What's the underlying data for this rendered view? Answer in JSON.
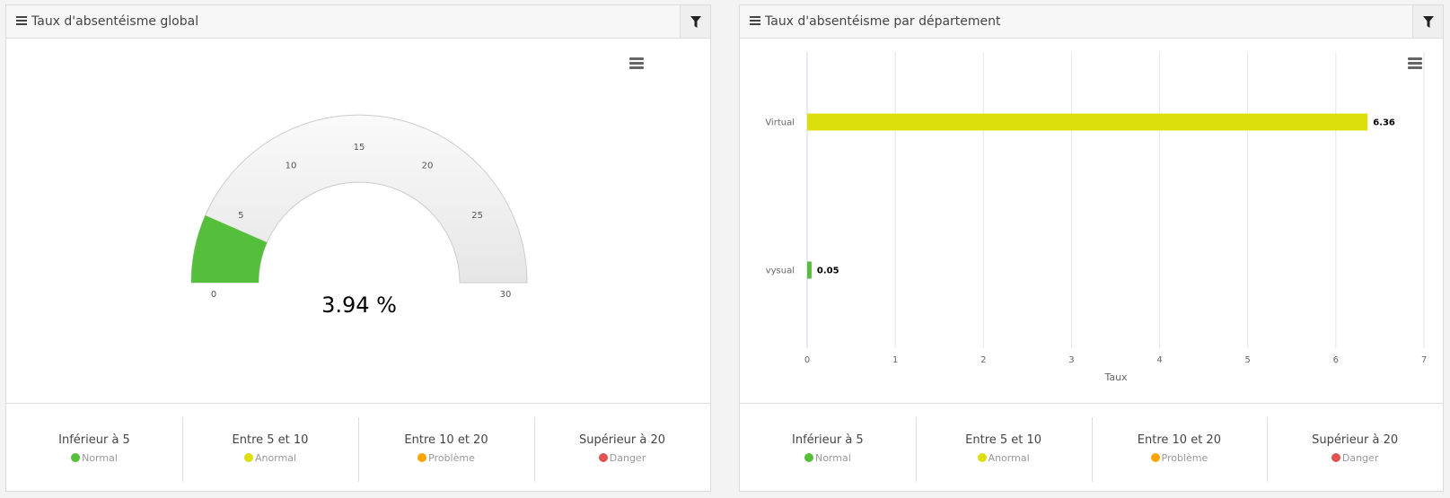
{
  "colors": {
    "normal": "#55bf3b",
    "anormal": "#dddf0d",
    "probleme": "#ffa500",
    "danger": "#df5353",
    "gauge_bg": "#f0f0f0"
  },
  "panels": [
    {
      "title": "Taux d'absentéisme global",
      "legend": [
        {
          "title": "Inférieur à 5",
          "status": "Normal",
          "color": "#55bf3b"
        },
        {
          "title": "Entre 5 et 10",
          "status": "Anormal",
          "color": "#dddf0d"
        },
        {
          "title": "Entre 10 et 20",
          "status": "Problème",
          "color": "#ffa500"
        },
        {
          "title": "Supérieur à 20",
          "status": "Danger",
          "color": "#df5353"
        }
      ]
    },
    {
      "title": "Taux d'absentéisme par département",
      "legend": [
        {
          "title": "Inférieur à 5",
          "status": "Normal",
          "color": "#55bf3b"
        },
        {
          "title": "Entre 5 et 10",
          "status": "Anormal",
          "color": "#dddf0d"
        },
        {
          "title": "Entre 10 et 20",
          "status": "Problème",
          "color": "#ffa500"
        },
        {
          "title": "Supérieur à 20",
          "status": "Danger",
          "color": "#df5353"
        }
      ]
    }
  ],
  "chart_data": [
    {
      "type": "gauge",
      "title": "Taux d'absentéisme global",
      "value": 3.94,
      "value_label": "3.94 %",
      "min": 0,
      "max": 30,
      "ticks": [
        "0",
        "5",
        "10",
        "15",
        "20",
        "25",
        "30"
      ],
      "color": "#55bf3b"
    },
    {
      "type": "bar",
      "orientation": "horizontal",
      "title": "Taux d'absentéisme par département",
      "categories": [
        "Virtual",
        "vysual"
      ],
      "values": [
        6.36,
        0.05
      ],
      "value_labels": [
        "6.36",
        "0.05"
      ],
      "bar_colors": [
        "#dddf0d",
        "#55bf3b"
      ],
      "xlabel": "Taux",
      "ylabel": "",
      "xlim": [
        0,
        7
      ],
      "ticks": [
        "0",
        "1",
        "2",
        "3",
        "4",
        "5",
        "6",
        "7"
      ],
      "grid": true
    }
  ]
}
